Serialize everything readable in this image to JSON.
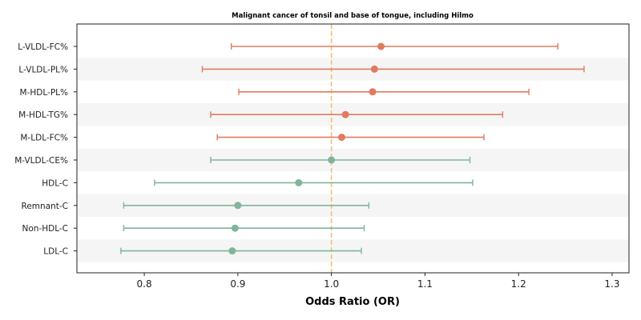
{
  "chart_data": {
    "type": "forest",
    "title": "Malignant cancer of tonsil and base of tongue, including Hilmo",
    "xlabel": "Odds Ratio (OR)",
    "xlim": [
      0.728,
      1.318
    ],
    "xticks": [
      "0.8",
      "0.9",
      "1.0",
      "1.1",
      "1.2",
      "1.3"
    ],
    "reference_line": 1.0,
    "colors": {
      "above_null": "#e07b5f",
      "below_null": "#7fb59b",
      "reference": "#f3c07a",
      "band": "#f5f5f5"
    },
    "rows": [
      {
        "label": "L-VLDL-FC%",
        "or": 1.053,
        "lo": 0.893,
        "hi": 1.242,
        "group": "above_null"
      },
      {
        "label": "L-VLDL-PL%",
        "or": 1.046,
        "lo": 0.862,
        "hi": 1.27,
        "group": "above_null"
      },
      {
        "label": "M-HDL-PL%",
        "or": 1.044,
        "lo": 0.901,
        "hi": 1.211,
        "group": "above_null"
      },
      {
        "label": "M-HDL-TG%",
        "or": 1.015,
        "lo": 0.871,
        "hi": 1.183,
        "group": "above_null"
      },
      {
        "label": "M-LDL-FC%",
        "or": 1.011,
        "lo": 0.878,
        "hi": 1.163,
        "group": "above_null"
      },
      {
        "label": "M-VLDL-CE%",
        "or": 1.0,
        "lo": 0.871,
        "hi": 1.148,
        "group": "below_null"
      },
      {
        "label": "HDL-C",
        "or": 0.965,
        "lo": 0.811,
        "hi": 1.151,
        "group": "below_null"
      },
      {
        "label": "Remnant-C",
        "or": 0.9,
        "lo": 0.778,
        "hi": 1.04,
        "group": "below_null"
      },
      {
        "label": "Non-HDL-C",
        "or": 0.897,
        "lo": 0.778,
        "hi": 1.035,
        "group": "below_null"
      },
      {
        "label": "LDL-C",
        "or": 0.894,
        "lo": 0.775,
        "hi": 1.032,
        "group": "below_null"
      }
    ]
  }
}
